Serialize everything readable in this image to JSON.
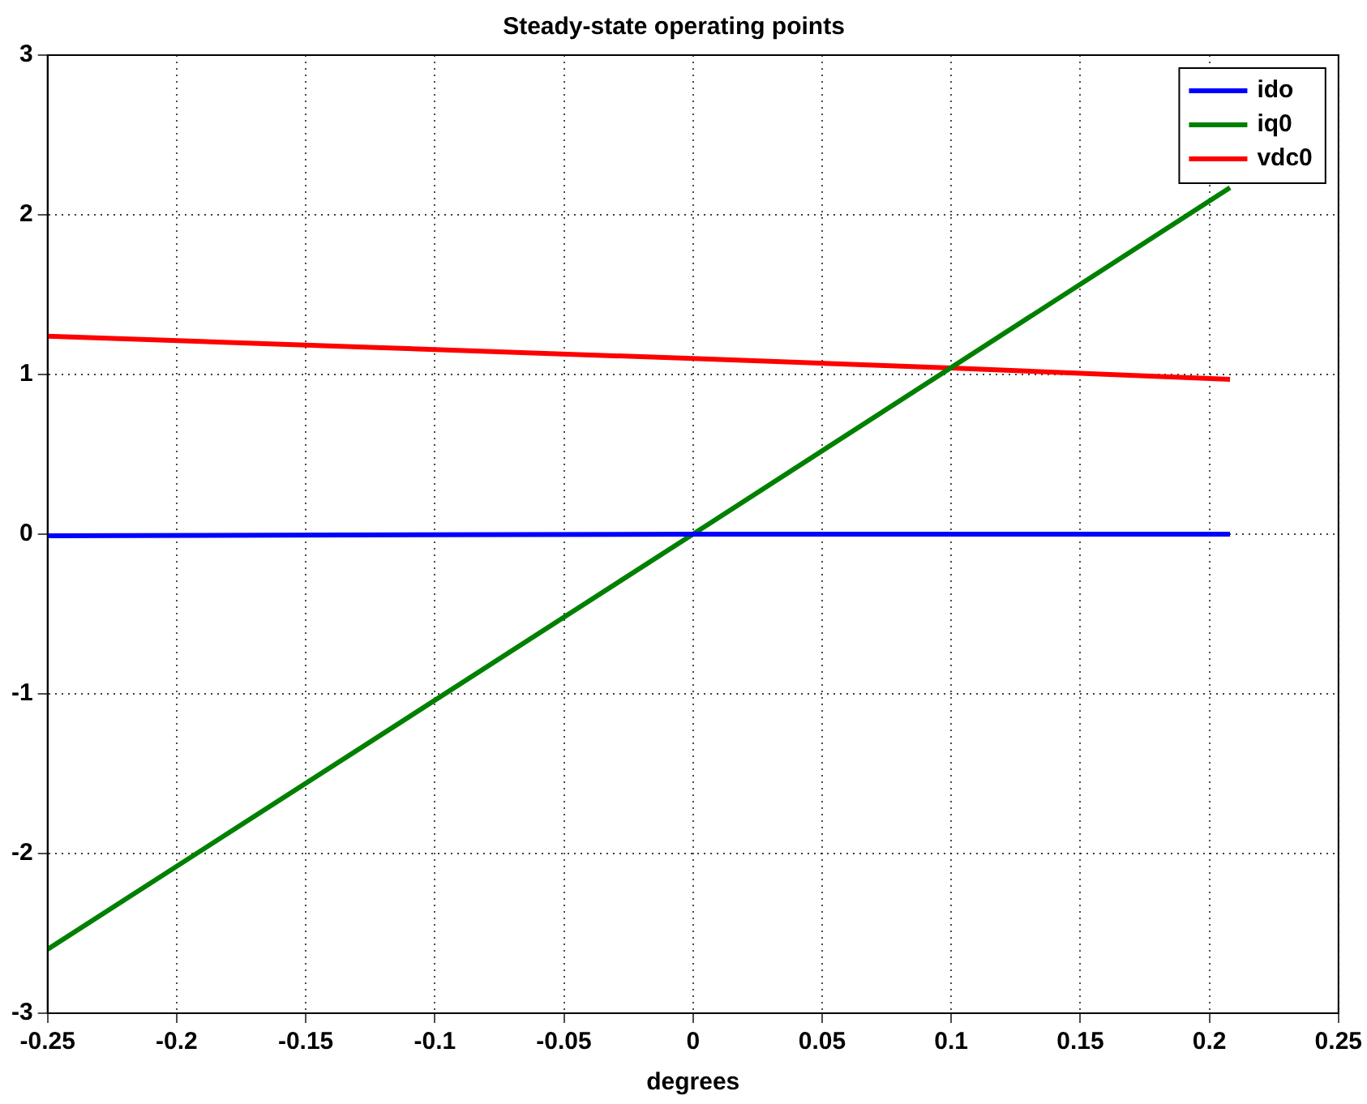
{
  "chart_data": {
    "type": "line",
    "title": "Steady-state operating points",
    "xlabel": "degrees",
    "xlim": [
      -0.25,
      0.25
    ],
    "xticks": [
      -0.25,
      -0.2,
      -0.15,
      -0.1,
      -0.05,
      0,
      0.05,
      0.1,
      0.15,
      0.2,
      0.25
    ],
    "ylim": [
      -3,
      3
    ],
    "yticks": [
      -3,
      -2,
      -1,
      0,
      1,
      2,
      3
    ],
    "grid": true,
    "legend": "top right",
    "marker": "none",
    "line_style": "solid",
    "series": [
      {
        "name": "ido",
        "color": "#0000ff",
        "x": [
          -0.25,
          0,
          0.208
        ],
        "values": [
          -0.01,
          0,
          0
        ]
      },
      {
        "name": "iq0",
        "color": "#008000",
        "x": [
          -0.25,
          0,
          0.208
        ],
        "values": [
          -2.6,
          0,
          2.17
        ]
      },
      {
        "name": "vdc0",
        "color": "#ff0000",
        "x": [
          -0.25,
          -0.125,
          0,
          0.1,
          0.208
        ],
        "values": [
          1.24,
          1.17,
          1.1,
          1.04,
          0.97
        ]
      }
    ]
  }
}
